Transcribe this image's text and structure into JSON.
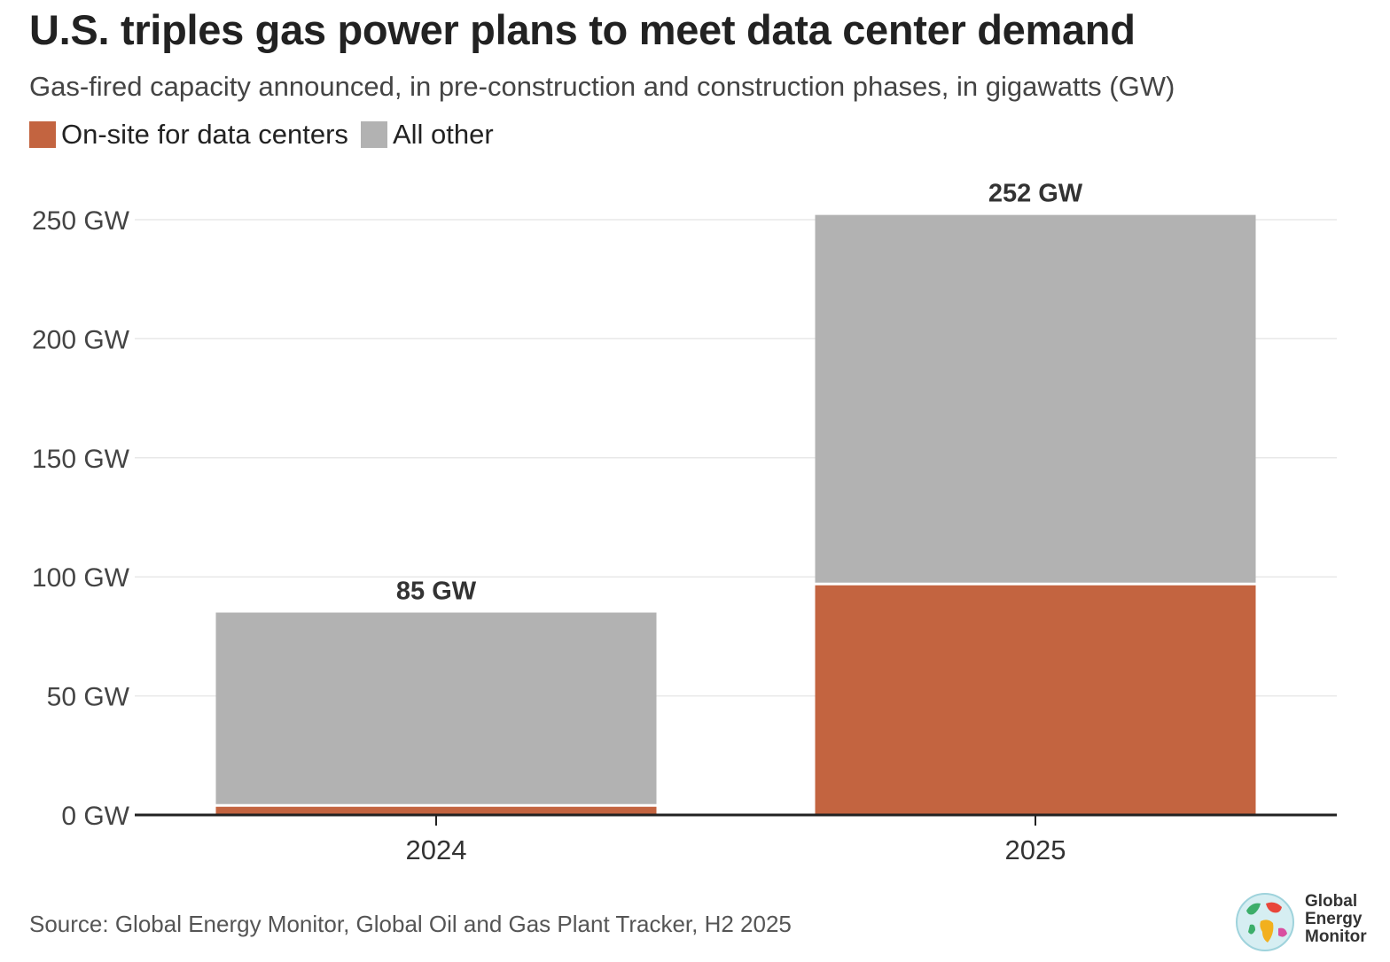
{
  "header": {
    "title": "U.S. triples gas power plans to meet data center demand",
    "subtitle": "Gas-fired capacity announced, in pre-construction and construction phases, in gigawatts (GW)"
  },
  "legend": [
    {
      "label": "On-site for data centers",
      "color": "#c36440"
    },
    {
      "label": "All other",
      "color": "#b2b2b2"
    }
  ],
  "chart_data": {
    "type": "bar",
    "stacked": true,
    "categories": [
      "2024",
      "2025"
    ],
    "series": [
      {
        "name": "On-site for data centers",
        "color": "#c36440",
        "values": [
          4,
          97
        ]
      },
      {
        "name": "All other",
        "color": "#b2b2b2",
        "values": [
          81,
          155
        ]
      }
    ],
    "totals": [
      85,
      252
    ],
    "total_labels": [
      "85 GW",
      "252 GW"
    ],
    "ylim": [
      0,
      250
    ],
    "yticks": [
      0,
      50,
      100,
      150,
      200,
      250
    ],
    "ytick_labels": [
      "0 GW",
      "50 GW",
      "100 GW",
      "150 GW",
      "200 GW",
      "250 GW"
    ],
    "grid": true,
    "legend_position": "top-left"
  },
  "footer": {
    "source": "Source: Global Energy Monitor, Global Oil and Gas Plant Tracker, H2 2025",
    "logo_lines": [
      "Global",
      "Energy",
      "Monitor"
    ]
  }
}
